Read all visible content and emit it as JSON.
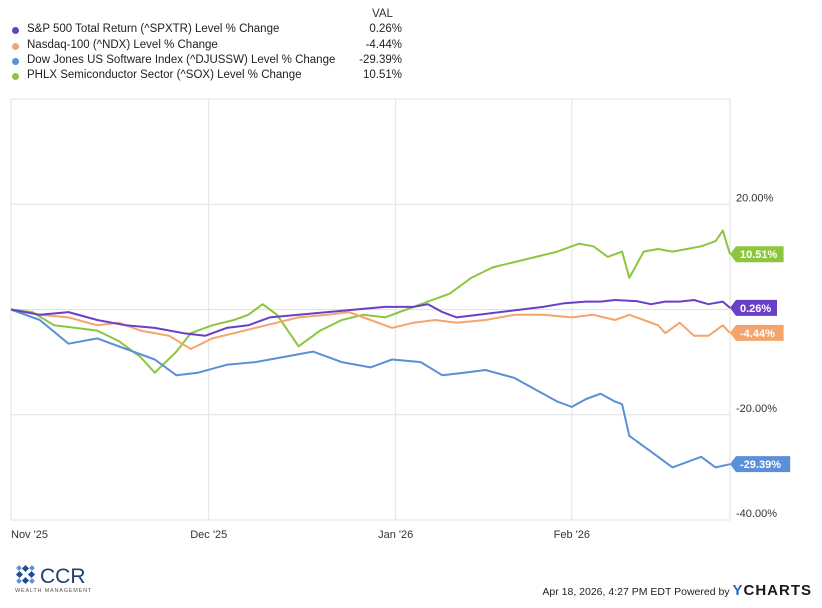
{
  "legend": {
    "header": "VAL",
    "items": [
      {
        "name": "S&P 500 Total Return (^SPXTR) Level % Change",
        "value": "0.26%",
        "color": "#6a3fc7"
      },
      {
        "name": "Nasdaq-100 (^NDX) Level % Change",
        "value": "-4.44%",
        "color": "#f4a46c"
      },
      {
        "name": "Dow Jones US Software Index (^DJUSSW) Level % Change",
        "value": "-29.39%",
        "color": "#5b8fd8"
      },
      {
        "name": "PHLX Semiconductor Sector (^SOX) Level % Change",
        "value": "10.51%",
        "color": "#8cc63f"
      }
    ]
  },
  "footer": {
    "logo_text": "CCR",
    "logo_subtext": "WEALTH MANAGEMENT",
    "timestamp": "Apr 18, 2026, 4:27 PM EDT Powered by",
    "brand": "YCHARTS"
  },
  "chart_data": {
    "type": "line",
    "x_ticks": [
      "Nov '25",
      "Dec '25",
      "Jan '26",
      "Feb '26"
    ],
    "y_ticks": [
      "20.00%",
      "-20.00%",
      "-40.00%"
    ],
    "ylim": [
      -40,
      40
    ],
    "grid": true,
    "end_labels": [
      "10.51%",
      "0.26%",
      "-4.44%",
      "-29.39%"
    ],
    "series": [
      {
        "name": "S&P 500 Total Return (^SPXTR) Level % Change",
        "color": "#6a3fc7",
        "points": [
          [
            0,
            0
          ],
          [
            4,
            -1
          ],
          [
            8,
            -0.5
          ],
          [
            12,
            -2
          ],
          [
            16,
            -3
          ],
          [
            20,
            -3.5
          ],
          [
            24,
            -4.5
          ],
          [
            27,
            -5
          ],
          [
            30,
            -3.5
          ],
          [
            33,
            -3
          ],
          [
            36,
            -1.5
          ],
          [
            40,
            -1
          ],
          [
            44,
            -0.5
          ],
          [
            48,
            0
          ],
          [
            52,
            0.5
          ],
          [
            56,
            0.5
          ],
          [
            58,
            1
          ],
          [
            60,
            -0.5
          ],
          [
            62,
            -1.5
          ],
          [
            65,
            -1
          ],
          [
            68,
            -0.5
          ],
          [
            71,
            0
          ],
          [
            74,
            0.5
          ],
          [
            77,
            1.2
          ],
          [
            80,
            1.5
          ],
          [
            82,
            1.5
          ],
          [
            84,
            1.8
          ],
          [
            87,
            1.6
          ],
          [
            89,
            1
          ],
          [
            91,
            1.5
          ],
          [
            93,
            1.5
          ],
          [
            95,
            1.8
          ],
          [
            97,
            1
          ],
          [
            99,
            1.5
          ],
          [
            100,
            0.3
          ]
        ]
      },
      {
        "name": "Nasdaq-100 (^NDX) Level % Change",
        "color": "#f4a46c",
        "points": [
          [
            0,
            0
          ],
          [
            4,
            -1
          ],
          [
            8,
            -1.5
          ],
          [
            12,
            -3
          ],
          [
            15,
            -2.5
          ],
          [
            18,
            -4
          ],
          [
            22,
            -5
          ],
          [
            25,
            -7.5
          ],
          [
            28,
            -5.5
          ],
          [
            31,
            -4.5
          ],
          [
            34,
            -3.5
          ],
          [
            37,
            -2.5
          ],
          [
            40,
            -1.5
          ],
          [
            44,
            -1
          ],
          [
            47,
            -0.5
          ],
          [
            50,
            -2
          ],
          [
            53,
            -3.5
          ],
          [
            56,
            -2.5
          ],
          [
            59,
            -2
          ],
          [
            62,
            -2.5
          ],
          [
            66,
            -2
          ],
          [
            70,
            -1
          ],
          [
            74,
            -1
          ],
          [
            78,
            -1.5
          ],
          [
            81,
            -1
          ],
          [
            84,
            -2
          ],
          [
            86,
            -1
          ],
          [
            88,
            -2
          ],
          [
            90,
            -3
          ],
          [
            91,
            -4.5
          ],
          [
            93,
            -2.5
          ],
          [
            95,
            -5
          ],
          [
            97,
            -5
          ],
          [
            99,
            -3
          ],
          [
            100,
            -4.44
          ]
        ]
      },
      {
        "name": "Dow Jones US Software Index (^DJUSSW) Level % Change",
        "color": "#5b8fd8",
        "points": [
          [
            0,
            0
          ],
          [
            4,
            -2
          ],
          [
            8,
            -6.5
          ],
          [
            12,
            -5.5
          ],
          [
            16,
            -7.5
          ],
          [
            20,
            -9.5
          ],
          [
            23,
            -12.5
          ],
          [
            26,
            -12
          ],
          [
            30,
            -10.5
          ],
          [
            34,
            -10
          ],
          [
            38,
            -9
          ],
          [
            42,
            -8
          ],
          [
            46,
            -10
          ],
          [
            50,
            -11
          ],
          [
            53,
            -9.5
          ],
          [
            57,
            -10
          ],
          [
            60,
            -12.5
          ],
          [
            63,
            -12
          ],
          [
            66,
            -11.5
          ],
          [
            70,
            -13
          ],
          [
            74,
            -16
          ],
          [
            76,
            -17.5
          ],
          [
            78,
            -18.5
          ],
          [
            80,
            -17
          ],
          [
            82,
            -16
          ],
          [
            84,
            -17.5
          ],
          [
            85,
            -18
          ],
          [
            86,
            -24
          ],
          [
            88,
            -26
          ],
          [
            90,
            -28
          ],
          [
            92,
            -30
          ],
          [
            94,
            -29
          ],
          [
            96,
            -28
          ],
          [
            98,
            -30
          ],
          [
            100,
            -29.39
          ]
        ]
      },
      {
        "name": "PHLX Semiconductor Sector (^SOX) Level % Change",
        "color": "#8cc63f",
        "points": [
          [
            0,
            0
          ],
          [
            3,
            -0.5
          ],
          [
            6,
            -3
          ],
          [
            9,
            -3.5
          ],
          [
            12,
            -4
          ],
          [
            15,
            -6
          ],
          [
            18,
            -9
          ],
          [
            20,
            -12
          ],
          [
            23,
            -8
          ],
          [
            25,
            -4.5
          ],
          [
            28,
            -3
          ],
          [
            31,
            -2
          ],
          [
            33,
            -1
          ],
          [
            35,
            1
          ],
          [
            37,
            -1
          ],
          [
            38,
            -3
          ],
          [
            40,
            -7
          ],
          [
            43,
            -4
          ],
          [
            46,
            -2
          ],
          [
            49,
            -1
          ],
          [
            52,
            -1.5
          ],
          [
            55,
            0
          ],
          [
            58,
            1.5
          ],
          [
            61,
            3
          ],
          [
            64,
            6
          ],
          [
            67,
            8
          ],
          [
            70,
            9
          ],
          [
            73,
            10
          ],
          [
            76,
            11
          ],
          [
            79,
            12.5
          ],
          [
            81,
            12
          ],
          [
            83,
            10
          ],
          [
            85,
            11
          ],
          [
            86,
            6
          ],
          [
            88,
            11
          ],
          [
            90,
            11.5
          ],
          [
            92,
            11
          ],
          [
            94,
            11.5
          ],
          [
            96,
            12
          ],
          [
            98,
            13
          ],
          [
            99,
            15
          ],
          [
            100,
            10.51
          ]
        ]
      }
    ]
  }
}
